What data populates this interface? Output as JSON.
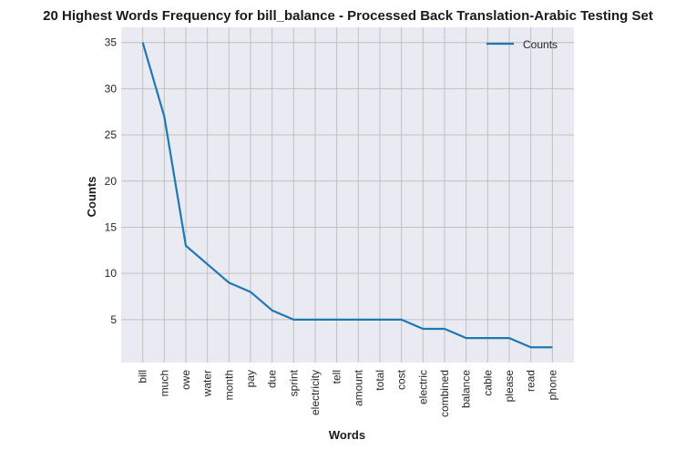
{
  "chart_data": {
    "type": "line",
    "title": "20 Highest Words Frequency for bill_balance - Processed Back Translation-Arabic Testing Set",
    "xlabel": "Words",
    "ylabel": "Counts",
    "categories": [
      "bill",
      "much",
      "owe",
      "water",
      "month",
      "pay",
      "due",
      "sprint",
      "electricity",
      "tell",
      "amount",
      "total",
      "cost",
      "electric",
      "combined",
      "balance",
      "cable",
      "please",
      "read",
      "phone"
    ],
    "series": [
      {
        "name": "Counts",
        "values": [
          35,
          27,
          13,
          11,
          9,
          8,
          6,
          5,
          5,
          5,
          5,
          5,
          5,
          4,
          4,
          3,
          3,
          3,
          2,
          2
        ]
      }
    ],
    "ylim": [
      0.35,
      36.65
    ],
    "yticks": [
      5,
      10,
      15,
      20,
      25,
      30,
      35
    ],
    "grid": true,
    "legend": "top-right",
    "colors": {
      "line": "#1f77b4",
      "background": "#eaeaf2",
      "grid": "#c0c0c0"
    }
  }
}
